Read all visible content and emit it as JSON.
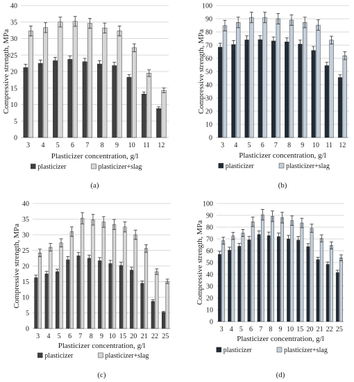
{
  "chart_data": [
    {
      "type": "bar",
      "panel_label": "(a)",
      "xlabel": "Plasticizer concentration, g/l",
      "ylabel": "Compressive strength, MPa",
      "ylim": [
        0,
        40
      ],
      "yticks": [
        0,
        5,
        10,
        15,
        20,
        25,
        30,
        35,
        40
      ],
      "grid": true,
      "legend": "bottom",
      "categories": [
        "3",
        "4",
        "5",
        "6",
        "7",
        "8",
        "9",
        "10",
        "11",
        "12"
      ],
      "series": [
        {
          "name": "plasticizer",
          "color": "#404040",
          "values": [
            21.2,
            22.5,
            23.3,
            23.7,
            23.0,
            22.3,
            21.8,
            18.3,
            13.2,
            8.8
          ],
          "errors": [
            1.0,
            1.0,
            1.0,
            1.0,
            1.0,
            1.0,
            1.0,
            0.8,
            0.6,
            0.5
          ]
        },
        {
          "name": "plasticizer+slag",
          "color": "#d6d6d6",
          "values": [
            32.3,
            33.3,
            35.0,
            35.2,
            34.6,
            33.2,
            32.3,
            27.2,
            19.5,
            14.3
          ],
          "errors": [
            1.5,
            1.5,
            1.5,
            1.5,
            1.5,
            1.5,
            1.5,
            1.2,
            1.0,
            0.7
          ]
        }
      ]
    },
    {
      "type": "bar",
      "panel_label": "(b)",
      "xlabel": "Plasticizer concentration, g/l",
      "ylabel": "Compressive strength, MPa",
      "ylim": [
        0,
        100
      ],
      "yticks": [
        0,
        10,
        20,
        30,
        40,
        50,
        60,
        70,
        80,
        90,
        100
      ],
      "grid": true,
      "legend": "bottom",
      "categories": [
        "3",
        "4",
        "5",
        "6",
        "7",
        "8",
        "9",
        "10",
        "11",
        "12"
      ],
      "series": [
        {
          "name": "plasticizer",
          "color": "#1f2a36",
          "values": [
            68.5,
            70.5,
            74.0,
            74.2,
            73.2,
            72.5,
            70.8,
            66.0,
            54.5,
            45.5
          ],
          "errors": [
            3,
            3,
            3,
            3,
            3,
            3,
            3,
            3,
            2.5,
            2
          ]
        },
        {
          "name": "plasticizer+slag",
          "color": "#c3cfdb",
          "values": [
            84.8,
            87.2,
            91.0,
            91.0,
            90.0,
            89.0,
            87.2,
            85.2,
            73.8,
            62.0
          ],
          "errors": [
            4,
            4,
            4,
            4,
            4,
            4,
            4,
            4,
            3,
            3
          ]
        }
      ]
    },
    {
      "type": "bar",
      "panel_label": "(c)",
      "xlabel": "Plasticizer concentration, g/l",
      "ylabel": "Compressive strength, MPa",
      "ylim": [
        0,
        40
      ],
      "yticks": [
        0,
        5,
        10,
        15,
        20,
        25,
        30,
        35,
        40
      ],
      "grid": true,
      "legend": "bottom",
      "categories": [
        "3",
        "4",
        "5",
        "6",
        "7",
        "8",
        "9",
        "10",
        "15",
        "20",
        "21",
        "22",
        "25"
      ],
      "series": [
        {
          "name": "plasticizer",
          "color": "#404040",
          "values": [
            16.3,
            17.5,
            18.2,
            22.0,
            23.3,
            22.5,
            21.7,
            20.8,
            20.2,
            18.7,
            14.5,
            8.7,
            5.2
          ],
          "errors": [
            0.8,
            0.8,
            0.8,
            1.0,
            1.0,
            1.0,
            1.0,
            1.0,
            1.0,
            0.9,
            0.7,
            0.5,
            0.3
          ]
        },
        {
          "name": "plasticizer+slag",
          "color": "#d6d6d6",
          "values": [
            24.2,
            26.0,
            27.4,
            31.0,
            35.3,
            34.8,
            34.1,
            33.3,
            32.5,
            30.0,
            25.6,
            18.2,
            15.1
          ],
          "errors": [
            1.2,
            1.2,
            1.3,
            1.5,
            1.8,
            1.7,
            1.7,
            1.6,
            1.6,
            1.5,
            1.2,
            0.9,
            0.7
          ]
        }
      ]
    },
    {
      "type": "bar",
      "panel_label": "(d)",
      "xlabel": "Plasticizer concentration, g/l",
      "ylabel": "Compressive strength, MPa",
      "ylim": [
        0,
        100
      ],
      "yticks": [
        0,
        10,
        20,
        30,
        40,
        50,
        60,
        70,
        80,
        90,
        100
      ],
      "grid": true,
      "legend": "bottom",
      "categories": [
        "3",
        "4",
        "5",
        "6",
        "7",
        "8",
        "9",
        "10",
        "15",
        "20",
        "21",
        "22",
        "25"
      ],
      "series": [
        {
          "name": "plasticizer",
          "color": "#1f2a36",
          "values": [
            57.0,
            60.5,
            63.8,
            69.2,
            73.8,
            72.8,
            72.0,
            70.0,
            69.0,
            63.5,
            52.5,
            48.5,
            41.5
          ],
          "errors": [
            2.5,
            2.5,
            2.5,
            3,
            3,
            3,
            3,
            3,
            3,
            2.5,
            2,
            2,
            2
          ]
        },
        {
          "name": "plasticizer+slag",
          "color": "#c3cfdb",
          "values": [
            68.5,
            72.5,
            75.0,
            84.5,
            90.5,
            89.2,
            88.0,
            85.5,
            83.5,
            79.0,
            70.5,
            64.5,
            54.0
          ],
          "errors": [
            3,
            3,
            3,
            4,
            4.5,
            4.5,
            4.5,
            4,
            4,
            3.5,
            3,
            3,
            2.5
          ]
        }
      ]
    }
  ]
}
